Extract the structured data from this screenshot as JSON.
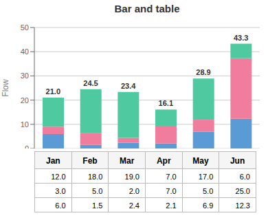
{
  "chart_data": {
    "type": "bar",
    "title": "Bar and table",
    "ylabel": "Flow",
    "categories": [
      "Jan",
      "Feb",
      "Mar",
      "Apr",
      "May",
      "Jun"
    ],
    "stacked": true,
    "series": [
      {
        "color": "#5b9bd5",
        "values": [
          6.0,
          1.5,
          2.4,
          2.1,
          6.9,
          12.3
        ],
        "value_labels": [
          "6.0",
          "1.5",
          "2.4",
          "2.1",
          "6.9",
          "12.3"
        ]
      },
      {
        "color": "#f07c9e",
        "values": [
          3.0,
          5.0,
          2.0,
          7.0,
          5.0,
          25.0
        ],
        "value_labels": [
          "3.0",
          "5.0",
          "2.0",
          "7.0",
          "5.0",
          "25.0"
        ]
      },
      {
        "color": "#4ec9a0",
        "values": [
          12.0,
          18.0,
          19.0,
          7.0,
          17.0,
          6.0
        ],
        "value_labels": [
          "12.0",
          "18.0",
          "19.0",
          "7.0",
          "17.0",
          "6.0"
        ]
      }
    ],
    "totals": [
      21.0,
      24.5,
      23.4,
      16.1,
      28.9,
      43.3
    ],
    "total_labels": [
      "21.0",
      "24.5",
      "23.4",
      "16.1",
      "28.9",
      "43.3"
    ],
    "ylim": [
      0,
      50
    ],
    "yticks": [
      0,
      10,
      20,
      30,
      40,
      50
    ],
    "grid": true
  }
}
